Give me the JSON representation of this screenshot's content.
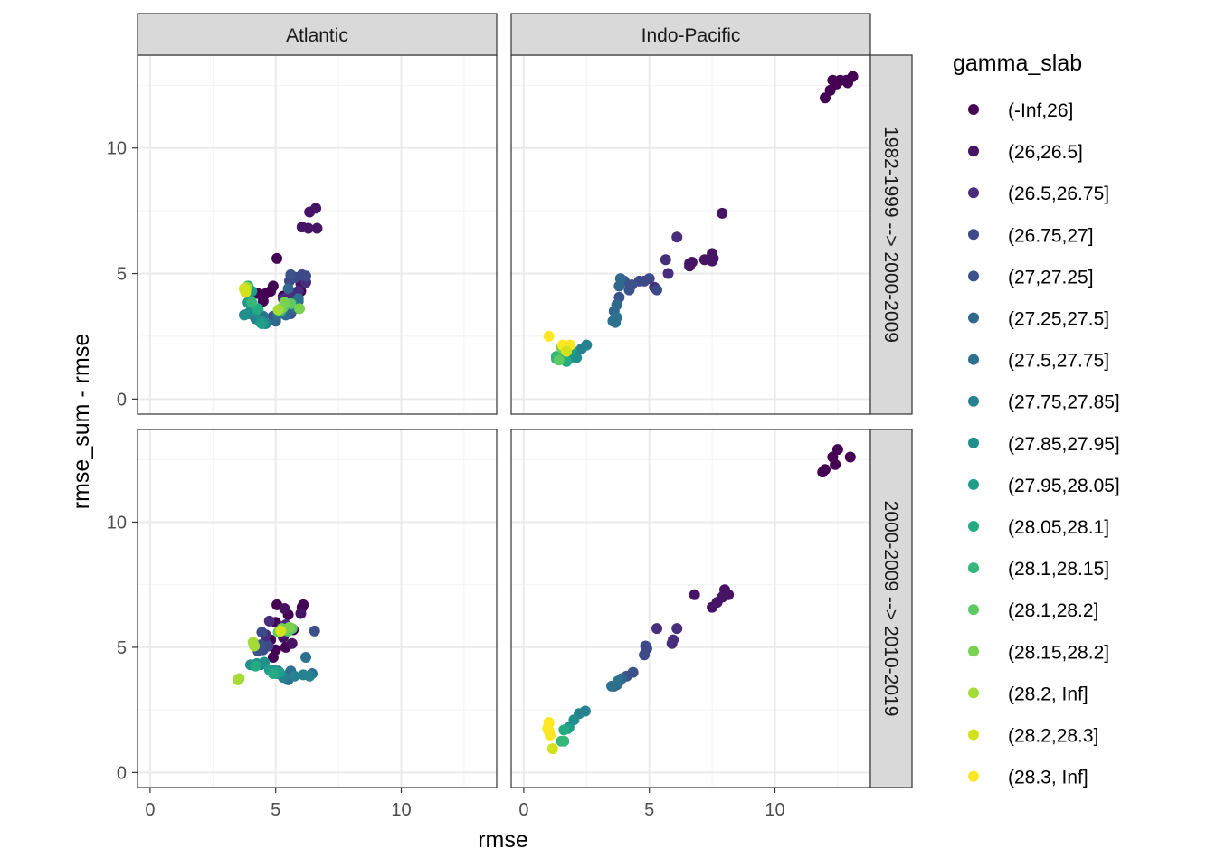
{
  "chart_data": {
    "type": "scatter",
    "xlabel": "rmse",
    "ylabel": "rmse_sum - rmse",
    "xlim": [
      -0.5,
      13.8
    ],
    "ylim": [
      -0.6,
      13.7
    ],
    "x_ticks": [
      0,
      5,
      10
    ],
    "y_ticks": [
      0,
      5,
      10
    ],
    "grid": true,
    "legend_position": "right",
    "legend": {
      "title": "gamma_slab",
      "entries": [
        {
          "label": "(-Inf,26]",
          "color": "#440154"
        },
        {
          "label": "(26,26.5]",
          "color": "#471365"
        },
        {
          "label": "(26.5,26.75]",
          "color": "#472d7b"
        },
        {
          "label": "(26.75,27]",
          "color": "#3e4989"
        },
        {
          "label": "(27,27.25]",
          "color": "#3b528b"
        },
        {
          "label": "(27.25,27.5]",
          "color": "#31688e"
        },
        {
          "label": "(27.5,27.75]",
          "color": "#2c728e"
        },
        {
          "label": "(27.75,27.85]",
          "color": "#26828e"
        },
        {
          "label": "(27.85,27.95]",
          "color": "#21908d"
        },
        {
          "label": "(27.95,28.05]",
          "color": "#1f9e89"
        },
        {
          "label": "(28.05,28.1]",
          "color": "#25ab82"
        },
        {
          "label": "(28.1,28.15]",
          "color": "#35b779"
        },
        {
          "label": "(28.1,28.2]",
          "color": "#5ec962"
        },
        {
          "label": "(28.15,28.2]",
          "color": "#7ad151"
        },
        {
          "label": "(28.2, Inf]",
          "color": "#a5db36"
        },
        {
          "label": "(28.2,28.3]",
          "color": "#d2e21b"
        },
        {
          "label": "(28.3, Inf]",
          "color": "#fde725"
        }
      ]
    },
    "col_strips": [
      "Atlantic",
      "Indo-Pacific"
    ],
    "row_strips": [
      "1982-1999 --> 2000-2009",
      "2000-2009 --> 2010-2019"
    ],
    "panels": [
      {
        "col": 0,
        "row": 0,
        "points": [
          [
            5.05,
            5.6,
            0
          ],
          [
            4.6,
            4.2,
            0
          ],
          [
            4.9,
            4.5,
            0
          ],
          [
            4.5,
            3.9,
            0
          ],
          [
            4.8,
            4.3,
            0
          ],
          [
            5.3,
            4.1,
            0
          ],
          [
            5.6,
            4.2,
            0
          ],
          [
            6.0,
            4.3,
            0
          ],
          [
            4.3,
            4.2,
            0
          ],
          [
            6.35,
            7.45,
            1
          ],
          [
            6.6,
            7.6,
            1
          ],
          [
            6.05,
            6.85,
            1
          ],
          [
            6.3,
            6.8,
            1
          ],
          [
            6.65,
            6.8,
            1
          ],
          [
            6.0,
            4.6,
            1
          ],
          [
            5.9,
            4.3,
            2
          ],
          [
            6.2,
            4.65,
            2
          ],
          [
            5.55,
            4.2,
            2
          ],
          [
            5.3,
            4.0,
            2
          ],
          [
            5.8,
            4.85,
            3
          ],
          [
            6.05,
            4.95,
            3
          ],
          [
            5.55,
            4.7,
            3
          ],
          [
            6.2,
            4.9,
            3
          ],
          [
            5.5,
            3.8,
            3
          ],
          [
            5.0,
            3.2,
            3
          ],
          [
            5.6,
            4.95,
            4
          ],
          [
            5.2,
            3.5,
            4
          ],
          [
            4.9,
            3.3,
            4
          ],
          [
            5.6,
            3.4,
            4
          ],
          [
            5.7,
            3.8,
            4
          ],
          [
            5.5,
            4.4,
            5
          ],
          [
            5.9,
            3.9,
            5
          ],
          [
            5.0,
            3.1,
            5
          ],
          [
            5.75,
            3.6,
            5
          ],
          [
            5.4,
            3.35,
            5
          ],
          [
            4.3,
            3.55,
            6
          ],
          [
            5.9,
            4.0,
            6
          ],
          [
            4.5,
            3.3,
            6
          ],
          [
            5.1,
            3.4,
            6
          ],
          [
            4.2,
            3.2,
            7
          ],
          [
            4.4,
            3.05,
            7
          ],
          [
            4.6,
            3.0,
            7
          ],
          [
            5.7,
            3.75,
            7
          ],
          [
            3.9,
            3.4,
            7
          ],
          [
            4.1,
            3.35,
            7
          ],
          [
            3.75,
            3.35,
            8
          ],
          [
            3.9,
            3.85,
            8
          ],
          [
            4.4,
            3.1,
            8
          ],
          [
            4.5,
            3.05,
            8
          ],
          [
            4.0,
            3.5,
            8
          ],
          [
            4.05,
            4.3,
            9
          ],
          [
            3.95,
            3.9,
            9
          ],
          [
            4.45,
            3.0,
            9
          ],
          [
            4.25,
            3.55,
            9
          ],
          [
            3.9,
            4.5,
            10
          ],
          [
            4.3,
            3.6,
            10
          ],
          [
            4.05,
            3.85,
            11
          ],
          [
            5.2,
            3.5,
            11
          ],
          [
            5.3,
            3.65,
            12
          ],
          [
            5.6,
            3.8,
            12
          ],
          [
            5.2,
            3.6,
            13
          ],
          [
            5.95,
            3.6,
            13
          ],
          [
            5.35,
            3.85,
            13
          ],
          [
            3.8,
            4.3,
            14
          ],
          [
            3.85,
            4.45,
            14
          ],
          [
            5.1,
            3.55,
            14
          ],
          [
            3.75,
            4.4,
            15
          ],
          [
            3.8,
            4.25,
            15
          ]
        ]
      },
      {
        "col": 1,
        "row": 0,
        "points": [
          [
            12.2,
            12.3,
            0
          ],
          [
            12.0,
            12.0,
            0
          ],
          [
            12.45,
            12.55,
            0
          ],
          [
            12.6,
            12.7,
            0
          ],
          [
            12.85,
            12.7,
            0
          ],
          [
            13.1,
            12.85,
            0
          ],
          [
            12.3,
            12.7,
            0
          ],
          [
            12.9,
            12.6,
            0
          ],
          [
            7.9,
            7.4,
            1
          ],
          [
            7.5,
            5.8,
            1
          ],
          [
            7.5,
            5.5,
            1
          ],
          [
            6.7,
            5.45,
            1
          ],
          [
            6.6,
            5.4,
            1
          ],
          [
            7.2,
            5.55,
            1
          ],
          [
            7.55,
            5.6,
            1
          ],
          [
            6.6,
            5.3,
            1
          ],
          [
            6.1,
            6.45,
            2
          ],
          [
            5.65,
            5.55,
            2
          ],
          [
            5.75,
            5.0,
            2
          ],
          [
            5.2,
            4.45,
            2
          ],
          [
            5.0,
            4.8,
            3
          ],
          [
            5.3,
            4.35,
            3
          ],
          [
            4.6,
            4.7,
            3
          ],
          [
            4.8,
            4.7,
            3
          ],
          [
            4.3,
            4.55,
            4
          ],
          [
            4.0,
            4.7,
            4
          ],
          [
            4.2,
            4.35,
            4
          ],
          [
            3.8,
            4.05,
            4
          ],
          [
            3.85,
            4.8,
            5
          ],
          [
            3.7,
            3.75,
            5
          ],
          [
            3.6,
            3.5,
            5
          ],
          [
            3.8,
            4.5,
            5
          ],
          [
            3.65,
            3.05,
            6
          ],
          [
            3.7,
            3.25,
            6
          ],
          [
            3.55,
            3.1,
            6
          ],
          [
            2.3,
            2.0,
            7
          ],
          [
            2.5,
            2.15,
            7
          ],
          [
            2.0,
            1.8,
            7
          ],
          [
            1.8,
            1.6,
            8
          ],
          [
            2.1,
            1.65,
            8
          ],
          [
            1.9,
            1.95,
            9
          ],
          [
            1.6,
            1.75,
            10
          ],
          [
            1.7,
            1.5,
            10
          ],
          [
            1.3,
            1.6,
            11
          ],
          [
            1.3,
            1.7,
            11
          ],
          [
            1.4,
            1.55,
            12
          ],
          [
            1.5,
            2.05,
            13
          ],
          [
            1.7,
            2.1,
            15
          ],
          [
            1.55,
            2.15,
            16
          ],
          [
            1.85,
            2.15,
            16
          ],
          [
            1.0,
            2.5,
            16
          ],
          [
            1.7,
            1.9,
            15
          ]
        ]
      },
      {
        "col": 0,
        "row": 1,
        "points": [
          [
            5.05,
            6.7,
            0
          ],
          [
            5.0,
            6.0,
            0
          ],
          [
            5.5,
            6.3,
            0
          ],
          [
            4.8,
            5.3,
            0
          ],
          [
            5.7,
            5.7,
            0
          ],
          [
            6.1,
            6.7,
            0
          ],
          [
            6.05,
            6.6,
            0
          ],
          [
            4.9,
            4.6,
            0
          ],
          [
            5.0,
            4.9,
            0
          ],
          [
            5.4,
            5.0,
            0
          ],
          [
            5.35,
            6.55,
            1
          ],
          [
            5.2,
            5.8,
            1
          ],
          [
            5.65,
            5.15,
            1
          ],
          [
            6.0,
            6.35,
            1
          ],
          [
            5.3,
            5.4,
            1
          ],
          [
            4.75,
            6.05,
            2
          ],
          [
            4.6,
            5.5,
            2
          ],
          [
            5.4,
            5.9,
            2
          ],
          [
            4.6,
            5.2,
            2
          ],
          [
            4.45,
            5.6,
            3
          ],
          [
            4.7,
            5.05,
            3
          ],
          [
            5.4,
            5.6,
            3
          ],
          [
            4.5,
            4.9,
            3
          ],
          [
            4.3,
            4.85,
            4
          ],
          [
            4.4,
            5.1,
            4
          ],
          [
            6.55,
            5.65,
            4
          ],
          [
            5.1,
            4.05,
            5
          ],
          [
            5.55,
            3.95,
            5
          ],
          [
            4.9,
            4.1,
            5
          ],
          [
            5.5,
            3.7,
            6
          ],
          [
            6.2,
            4.6,
            6
          ],
          [
            6.45,
            3.95,
            6
          ],
          [
            5.6,
            4.05,
            6
          ],
          [
            5.75,
            3.85,
            7
          ],
          [
            6.1,
            3.9,
            7
          ],
          [
            6.35,
            3.85,
            7
          ],
          [
            4.4,
            4.3,
            7
          ],
          [
            5.3,
            3.8,
            7
          ],
          [
            4.0,
            4.3,
            8
          ],
          [
            4.25,
            4.35,
            8
          ],
          [
            4.55,
            4.4,
            8
          ],
          [
            5.05,
            3.95,
            8
          ],
          [
            4.95,
            4.05,
            9
          ],
          [
            5.15,
            4.0,
            9
          ],
          [
            4.75,
            4.1,
            9
          ],
          [
            4.9,
            3.95,
            10
          ],
          [
            4.2,
            4.25,
            10
          ],
          [
            5.5,
            5.65,
            12
          ],
          [
            5.1,
            5.6,
            12
          ],
          [
            5.65,
            5.75,
            12
          ],
          [
            5.3,
            5.7,
            13
          ],
          [
            5.55,
            5.8,
            13
          ],
          [
            5.25,
            5.75,
            13
          ],
          [
            4.1,
            5.2,
            14
          ],
          [
            4.15,
            5.05,
            14
          ],
          [
            3.55,
            3.75,
            14
          ],
          [
            3.5,
            3.7,
            14
          ],
          [
            5.2,
            5.65,
            15
          ]
        ]
      },
      {
        "col": 1,
        "row": 1,
        "points": [
          [
            11.9,
            12.0,
            0
          ],
          [
            12.0,
            12.1,
            0
          ],
          [
            12.4,
            12.3,
            0
          ],
          [
            12.5,
            12.9,
            0
          ],
          [
            12.3,
            12.6,
            0
          ],
          [
            13.0,
            12.6,
            0
          ],
          [
            8.0,
            7.3,
            1
          ],
          [
            7.95,
            7.05,
            1
          ],
          [
            7.7,
            6.8,
            1
          ],
          [
            7.5,
            6.6,
            1
          ],
          [
            7.9,
            7.0,
            1
          ],
          [
            8.15,
            7.1,
            1
          ],
          [
            6.8,
            7.1,
            1
          ],
          [
            6.1,
            5.75,
            2
          ],
          [
            5.3,
            5.75,
            2
          ],
          [
            5.9,
            5.15,
            2
          ],
          [
            5.95,
            5.3,
            2
          ],
          [
            4.9,
            4.95,
            3
          ],
          [
            4.85,
            5.05,
            3
          ],
          [
            4.8,
            4.7,
            3
          ],
          [
            4.35,
            4.0,
            4
          ],
          [
            4.1,
            3.85,
            4
          ],
          [
            3.8,
            3.65,
            4
          ],
          [
            3.9,
            3.75,
            5
          ],
          [
            3.6,
            3.45,
            5
          ],
          [
            3.7,
            3.5,
            5
          ],
          [
            3.75,
            3.65,
            6
          ],
          [
            3.5,
            3.45,
            6
          ],
          [
            2.45,
            2.45,
            7
          ],
          [
            2.2,
            2.35,
            7
          ],
          [
            2.0,
            2.1,
            8
          ],
          [
            1.8,
            1.8,
            8
          ],
          [
            1.75,
            1.75,
            9
          ],
          [
            1.6,
            1.7,
            10
          ],
          [
            1.5,
            1.25,
            11
          ],
          [
            1.6,
            1.25,
            11
          ],
          [
            1.15,
            0.95,
            15
          ],
          [
            1.0,
            1.65,
            16
          ],
          [
            1.0,
            1.95,
            16
          ],
          [
            0.95,
            1.75,
            16
          ],
          [
            1.05,
            1.5,
            16
          ],
          [
            1.0,
            2.0,
            16
          ]
        ]
      }
    ]
  }
}
